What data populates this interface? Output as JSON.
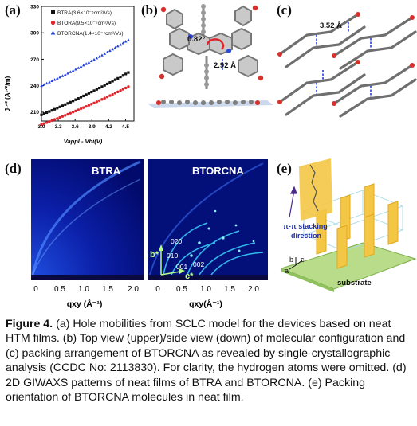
{
  "panel_labels": {
    "a": "(a)",
    "b": "(b)",
    "c": "(c)",
    "d": "(d)",
    "e": "(e)"
  },
  "panel_a": {
    "legend": [
      {
        "text": "BTRA(3.6×10⁻⁵cm²/Vs)",
        "color": "#111111"
      },
      {
        "text": "BTORA(9.5×10⁻⁶cm²/Vs)",
        "color": "#e0242b"
      },
      {
        "text": "BTORCNA(1.4×10⁻⁴cm²/Vs)",
        "color": "#2240d8"
      }
    ],
    "ylabel": "J¹ᐟ² (A¹ᐟ²/m)",
    "xlabel": "Vappl - Vbi(V)"
  },
  "chart_data": {
    "type": "scatter",
    "title": "",
    "xlabel": "Vappl - Vbi(V)",
    "ylabel": "J^1/2 (A^1/2/m)",
    "xlim": [
      3.0,
      4.65
    ],
    "ylim": [
      200,
      330
    ],
    "xticks": [
      "3.0",
      "3.3",
      "3.6",
      "3.9",
      "4.2",
      "4.5"
    ],
    "yticks": [
      "210",
      "240",
      "270",
      "300",
      "330"
    ],
    "series": [
      {
        "name": "BTRA(3.6×10⁻⁵cm²/Vs)",
        "color": "#111111",
        "x_start": 3.0,
        "x_end": 4.55,
        "y_start": 207,
        "y_end": 255
      },
      {
        "name": "BTORA(9.5×10⁻⁶cm²/Vs)",
        "color": "#e0242b",
        "x_start": 3.0,
        "x_end": 4.55,
        "y_start": 196,
        "y_end": 239
      },
      {
        "name": "BTORCNA(1.4×10⁻⁴cm²/Vs)",
        "color": "#2240d8",
        "x_start": 3.0,
        "x_end": 4.55,
        "y_start": 240,
        "y_end": 292
      }
    ]
  },
  "panel_b": {
    "angle": "0.82°",
    "distance": "2.92 Å"
  },
  "panel_c": {
    "distance": "3.52 Å"
  },
  "panel_d": {
    "left_title": "BTRA",
    "right_title": "BTORCNA",
    "left_xticks": [
      "0",
      "0.5",
      "1.0",
      "1.5",
      "2.0"
    ],
    "right_xticks": [
      "0",
      "0.5",
      "1.0",
      "1.5",
      "2.0"
    ],
    "left_xlabel": "qxy (Å⁻¹)",
    "right_xlabel": "qxy(Å⁻¹)",
    "peaks": [
      "020",
      "010",
      "001",
      "002"
    ],
    "axis_b": "b*",
    "axis_c": "c*"
  },
  "panel_e": {
    "stacking": "π-π stacking",
    "direction": "direction",
    "substrate": "substrate",
    "axes": [
      "b",
      "c",
      "a"
    ]
  },
  "caption": {
    "label": "Figure 4.",
    "text": "(a) Hole mobilities from SCLC model for the devices based on neat HTM films. (b) Top view (upper)/side view (down) of molecular configuration and (c) packing arrangement of BTORCNA as revealed by single-crystallographic analysis (CCDC No: 2113830). For clarity, the hydrogen atoms were omitted. (d) 2D GIWAXS patterns of neat films of BTRA and BTORCNA. (e) Packing orientation of BTORCNA molecules in neat film."
  }
}
